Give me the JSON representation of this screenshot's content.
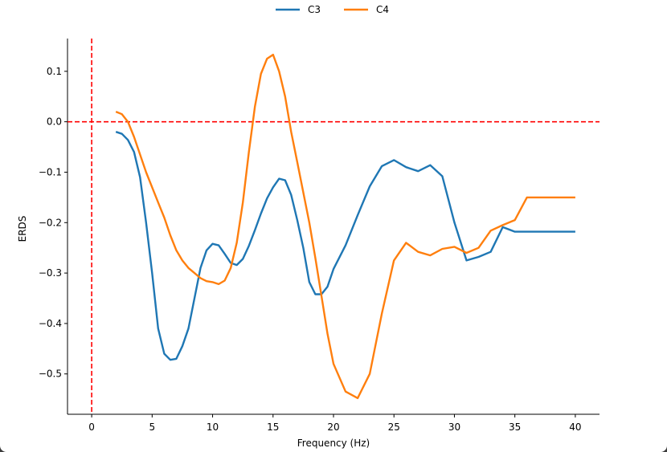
{
  "chart_data": {
    "type": "line",
    "title": "",
    "xlabel": "Frequency (Hz)",
    "ylabel": "ERDS",
    "xlim": [
      -2,
      42
    ],
    "ylim": [
      -0.58,
      0.165
    ],
    "xticks": [
      0,
      5,
      10,
      15,
      20,
      25,
      30,
      35,
      40
    ],
    "yticks": [
      -0.5,
      -0.4,
      -0.3,
      -0.2,
      -0.1,
      0.0,
      0.1
    ],
    "xtick_labels": [
      "0",
      "5",
      "10",
      "15",
      "20",
      "25",
      "30",
      "35",
      "40"
    ],
    "ytick_labels": [
      "−0.5",
      "−0.4",
      "−0.3",
      "−0.2",
      "−0.1",
      "0.0",
      "0.1"
    ],
    "grid": false,
    "legend_position": "top-center",
    "reference_lines": [
      {
        "orientation": "horizontal",
        "value": 0.0,
        "color": "#ff0000",
        "style": "dashed"
      },
      {
        "orientation": "vertical",
        "value": 0,
        "color": "#ff0000",
        "style": "dashed"
      }
    ],
    "series": [
      {
        "name": "C3",
        "color": "#1f77b4",
        "x": [
          2,
          2.5,
          3,
          3.5,
          4,
          4.5,
          5,
          5.5,
          6,
          6.5,
          7,
          7.5,
          8,
          8.5,
          9,
          9.5,
          10,
          10.5,
          11,
          11.5,
          12,
          12.5,
          13,
          13.5,
          14,
          14.5,
          15,
          15.5,
          16,
          16.5,
          17,
          17.5,
          18,
          18.5,
          19,
          19.5,
          20,
          21,
          22,
          23,
          24,
          25,
          26,
          27,
          28,
          29,
          30,
          31,
          32,
          33,
          34,
          35,
          36,
          37,
          38,
          39,
          40
        ],
        "y": [
          -0.02,
          -0.024,
          -0.036,
          -0.06,
          -0.11,
          -0.2,
          -0.3,
          -0.41,
          -0.46,
          -0.472,
          -0.47,
          -0.445,
          -0.41,
          -0.35,
          -0.29,
          -0.255,
          -0.242,
          -0.245,
          -0.262,
          -0.28,
          -0.284,
          -0.272,
          -0.246,
          -0.215,
          -0.182,
          -0.152,
          -0.13,
          -0.113,
          -0.116,
          -0.145,
          -0.195,
          -0.25,
          -0.318,
          -0.342,
          -0.342,
          -0.327,
          -0.292,
          -0.245,
          -0.185,
          -0.128,
          -0.088,
          -0.076,
          -0.09,
          -0.098,
          -0.086,
          -0.108,
          -0.2,
          -0.275,
          -0.268,
          -0.258,
          -0.209,
          -0.218,
          -0.218,
          -0.218,
          -0.218,
          -0.218,
          -0.218
        ]
      },
      {
        "name": "C4",
        "color": "#ff7f0e",
        "x": [
          2,
          2.5,
          3,
          3.5,
          4,
          4.5,
          5,
          5.5,
          6,
          6.5,
          7,
          7.5,
          8,
          8.5,
          9,
          9.5,
          10,
          10.5,
          11,
          11.5,
          12,
          12.5,
          13,
          13.5,
          14,
          14.5,
          15,
          15.5,
          16,
          16.5,
          17,
          17.5,
          18,
          18.5,
          19,
          19.5,
          20,
          21,
          22,
          23,
          24,
          25,
          26,
          27,
          28,
          29,
          30,
          31,
          32,
          33,
          34,
          35,
          36,
          37,
          38,
          39,
          40
        ],
        "y": [
          0.02,
          0.015,
          0.0,
          -0.03,
          -0.065,
          -0.1,
          -0.13,
          -0.16,
          -0.19,
          -0.225,
          -0.255,
          -0.275,
          -0.29,
          -0.3,
          -0.31,
          -0.316,
          -0.318,
          -0.322,
          -0.315,
          -0.29,
          -0.24,
          -0.16,
          -0.06,
          0.03,
          0.095,
          0.125,
          0.133,
          0.1,
          0.05,
          -0.02,
          -0.08,
          -0.14,
          -0.2,
          -0.27,
          -0.345,
          -0.42,
          -0.48,
          -0.535,
          -0.548,
          -0.5,
          -0.38,
          -0.275,
          -0.24,
          -0.258,
          -0.265,
          -0.252,
          -0.248,
          -0.26,
          -0.25,
          -0.216,
          -0.205,
          -0.195,
          -0.15,
          -0.15,
          -0.15,
          -0.15,
          -0.15
        ]
      }
    ]
  }
}
